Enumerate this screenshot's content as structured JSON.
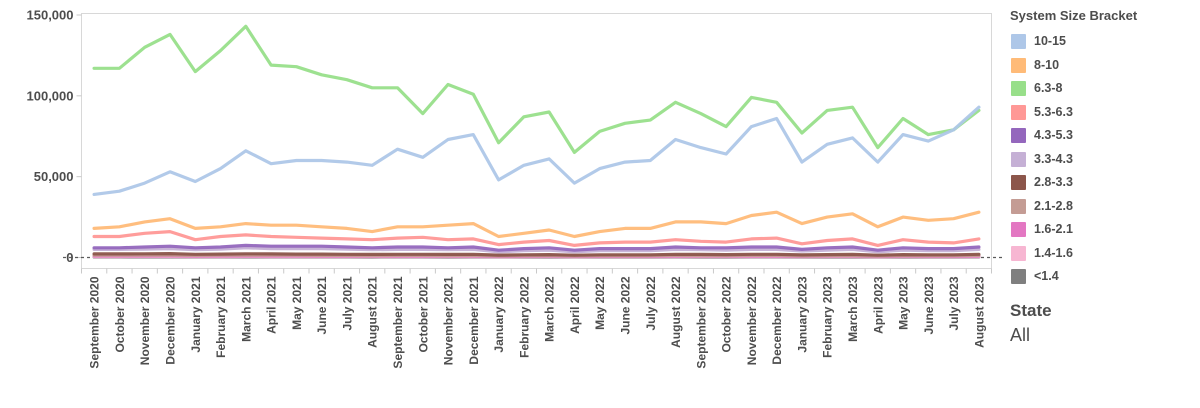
{
  "legend": {
    "title": "System Size Bracket"
  },
  "state_filter": {
    "title": "State",
    "value": "All"
  },
  "chart_data": {
    "type": "line",
    "title": "",
    "xlabel": "",
    "ylabel": "",
    "grid": false,
    "legend_position": "right",
    "zero_line": "dashed",
    "ylim": [
      -6800,
      151000
    ],
    "yticks": [
      0,
      50000,
      100000,
      150000
    ],
    "ytick_labels": [
      "0",
      "50,000",
      "100,000",
      "150,000"
    ],
    "x": [
      "September 2020",
      "October 2020",
      "November 2020",
      "December 2020",
      "January 2021",
      "February 2021",
      "March 2021",
      "April 2021",
      "May 2021",
      "June 2021",
      "July 2021",
      "August 2021",
      "September 2021",
      "October 2021",
      "November 2021",
      "December 2021",
      "January 2022",
      "February 2022",
      "March 2022",
      "April 2022",
      "May 2022",
      "June 2022",
      "July 2022",
      "August 2022",
      "September 2022",
      "October 2022",
      "November 2022",
      "December 2022",
      "January 2023",
      "February 2023",
      "March 2023",
      "April 2023",
      "May 2023",
      "June 2023",
      "July 2023",
      "August 2023"
    ],
    "series": [
      {
        "name": "10-15",
        "color": "#aec7e8",
        "values": [
          39000,
          41000,
          46000,
          53000,
          47000,
          55000,
          66000,
          58000,
          60000,
          60000,
          59000,
          57000,
          67000,
          62000,
          73000,
          76000,
          48000,
          57000,
          61000,
          46000,
          55000,
          59000,
          60000,
          73000,
          68000,
          64000,
          81000,
          86000,
          59000,
          70000,
          74000,
          59000,
          76000,
          72000,
          79000,
          93000
        ]
      },
      {
        "name": "8-10",
        "color": "#ffbb78",
        "values": [
          18000,
          19000,
          22000,
          24000,
          18000,
          19000,
          21000,
          20000,
          20000,
          19000,
          18000,
          16000,
          19000,
          19000,
          20000,
          21000,
          13000,
          15000,
          17000,
          13000,
          16000,
          18000,
          18000,
          22000,
          22000,
          21000,
          26000,
          28000,
          21000,
          25000,
          27000,
          19000,
          25000,
          23000,
          24000,
          28000
        ]
      },
      {
        "name": "6.3-8",
        "color": "#98df8a",
        "values": [
          117000,
          117000,
          130000,
          138000,
          115000,
          128000,
          143000,
          119000,
          118000,
          113000,
          110000,
          105000,
          105000,
          89000,
          107000,
          101000,
          71000,
          87000,
          90000,
          65000,
          78000,
          83000,
          85000,
          96000,
          89000,
          81000,
          99000,
          96000,
          77000,
          91000,
          93000,
          68000,
          86000,
          76000,
          79000,
          91000
        ]
      },
      {
        "name": "5.3-6.3",
        "color": "#ff9896",
        "values": [
          13000,
          13000,
          15000,
          16000,
          11000,
          13000,
          14000,
          13000,
          12500,
          12000,
          11500,
          11000,
          12000,
          12500,
          11000,
          11500,
          8000,
          9500,
          10500,
          7500,
          9000,
          9500,
          9500,
          11000,
          10000,
          9500,
          11500,
          12000,
          8500,
          10500,
          11500,
          7500,
          11000,
          9500,
          9000,
          11500
        ]
      },
      {
        "name": "4.3-5.3",
        "color": "#9467bd",
        "values": [
          6000,
          6000,
          6500,
          7000,
          6000,
          6500,
          7500,
          7000,
          7000,
          7000,
          6500,
          6000,
          6500,
          6500,
          6000,
          6500,
          4500,
          5500,
          6000,
          4500,
          5500,
          5500,
          5500,
          6500,
          6000,
          6000,
          6500,
          6500,
          5000,
          6000,
          6500,
          4500,
          6000,
          5500,
          5500,
          6500
        ]
      },
      {
        "name": "3.3-4.3",
        "color": "#c5b0d5",
        "values": [
          5000,
          5000,
          5200,
          5500,
          4800,
          5200,
          6000,
          5500,
          5500,
          5500,
          5200,
          4800,
          5000,
          5000,
          4800,
          5000,
          3500,
          4200,
          4500,
          3500,
          4200,
          4200,
          4200,
          5000,
          4800,
          4600,
          5000,
          5000,
          4000,
          4600,
          5000,
          3500,
          4600,
          4200,
          4200,
          5000
        ]
      },
      {
        "name": "2.8-3.3",
        "color": "#8c564b",
        "values": [
          2200,
          2200,
          2300,
          2400,
          2000,
          2100,
          2300,
          2200,
          2100,
          2100,
          2000,
          1900,
          2000,
          2000,
          1900,
          2000,
          1500,
          1700,
          1800,
          1400,
          1700,
          1700,
          1700,
          2000,
          1900,
          1800,
          2000,
          2000,
          1600,
          1800,
          1900,
          1400,
          1800,
          1700,
          1700,
          2000
        ]
      },
      {
        "name": "2.1-2.8",
        "color": "#c49c94",
        "values": [
          1400,
          1400,
          1500,
          1500,
          1300,
          1400,
          1500,
          1400,
          1400,
          1300,
          1300,
          1200,
          1300,
          1300,
          1200,
          1300,
          1000,
          1100,
          1200,
          1000,
          1100,
          1100,
          1100,
          1300,
          1200,
          1200,
          1300,
          1300,
          1000,
          1200,
          1200,
          900,
          1200,
          1100,
          1100,
          1300
        ]
      },
      {
        "name": "1.6-2.1",
        "color": "#e377c2",
        "values": [
          900,
          900,
          950,
          1000,
          850,
          900,
          950,
          900,
          900,
          850,
          850,
          800,
          850,
          850,
          800,
          850,
          650,
          750,
          800,
          650,
          750,
          750,
          750,
          850,
          800,
          800,
          850,
          850,
          700,
          800,
          800,
          600,
          800,
          750,
          750,
          850
        ]
      },
      {
        "name": "1.4-1.6",
        "color": "#f7b6d2",
        "values": [
          550,
          550,
          600,
          600,
          500,
          550,
          600,
          550,
          550,
          500,
          500,
          480,
          500,
          500,
          480,
          500,
          400,
          450,
          480,
          380,
          450,
          450,
          450,
          500,
          480,
          470,
          500,
          500,
          420,
          480,
          480,
          360,
          480,
          450,
          450,
          500
        ]
      },
      {
        "name": "<1.4",
        "color": "#7f7f7f",
        "values": [
          300,
          300,
          320,
          330,
          280,
          300,
          320,
          300,
          300,
          280,
          280,
          260,
          280,
          280,
          260,
          280,
          220,
          250,
          260,
          210,
          250,
          250,
          250,
          280,
          260,
          260,
          280,
          280,
          230,
          260,
          260,
          200,
          260,
          250,
          250,
          280
        ]
      }
    ]
  }
}
